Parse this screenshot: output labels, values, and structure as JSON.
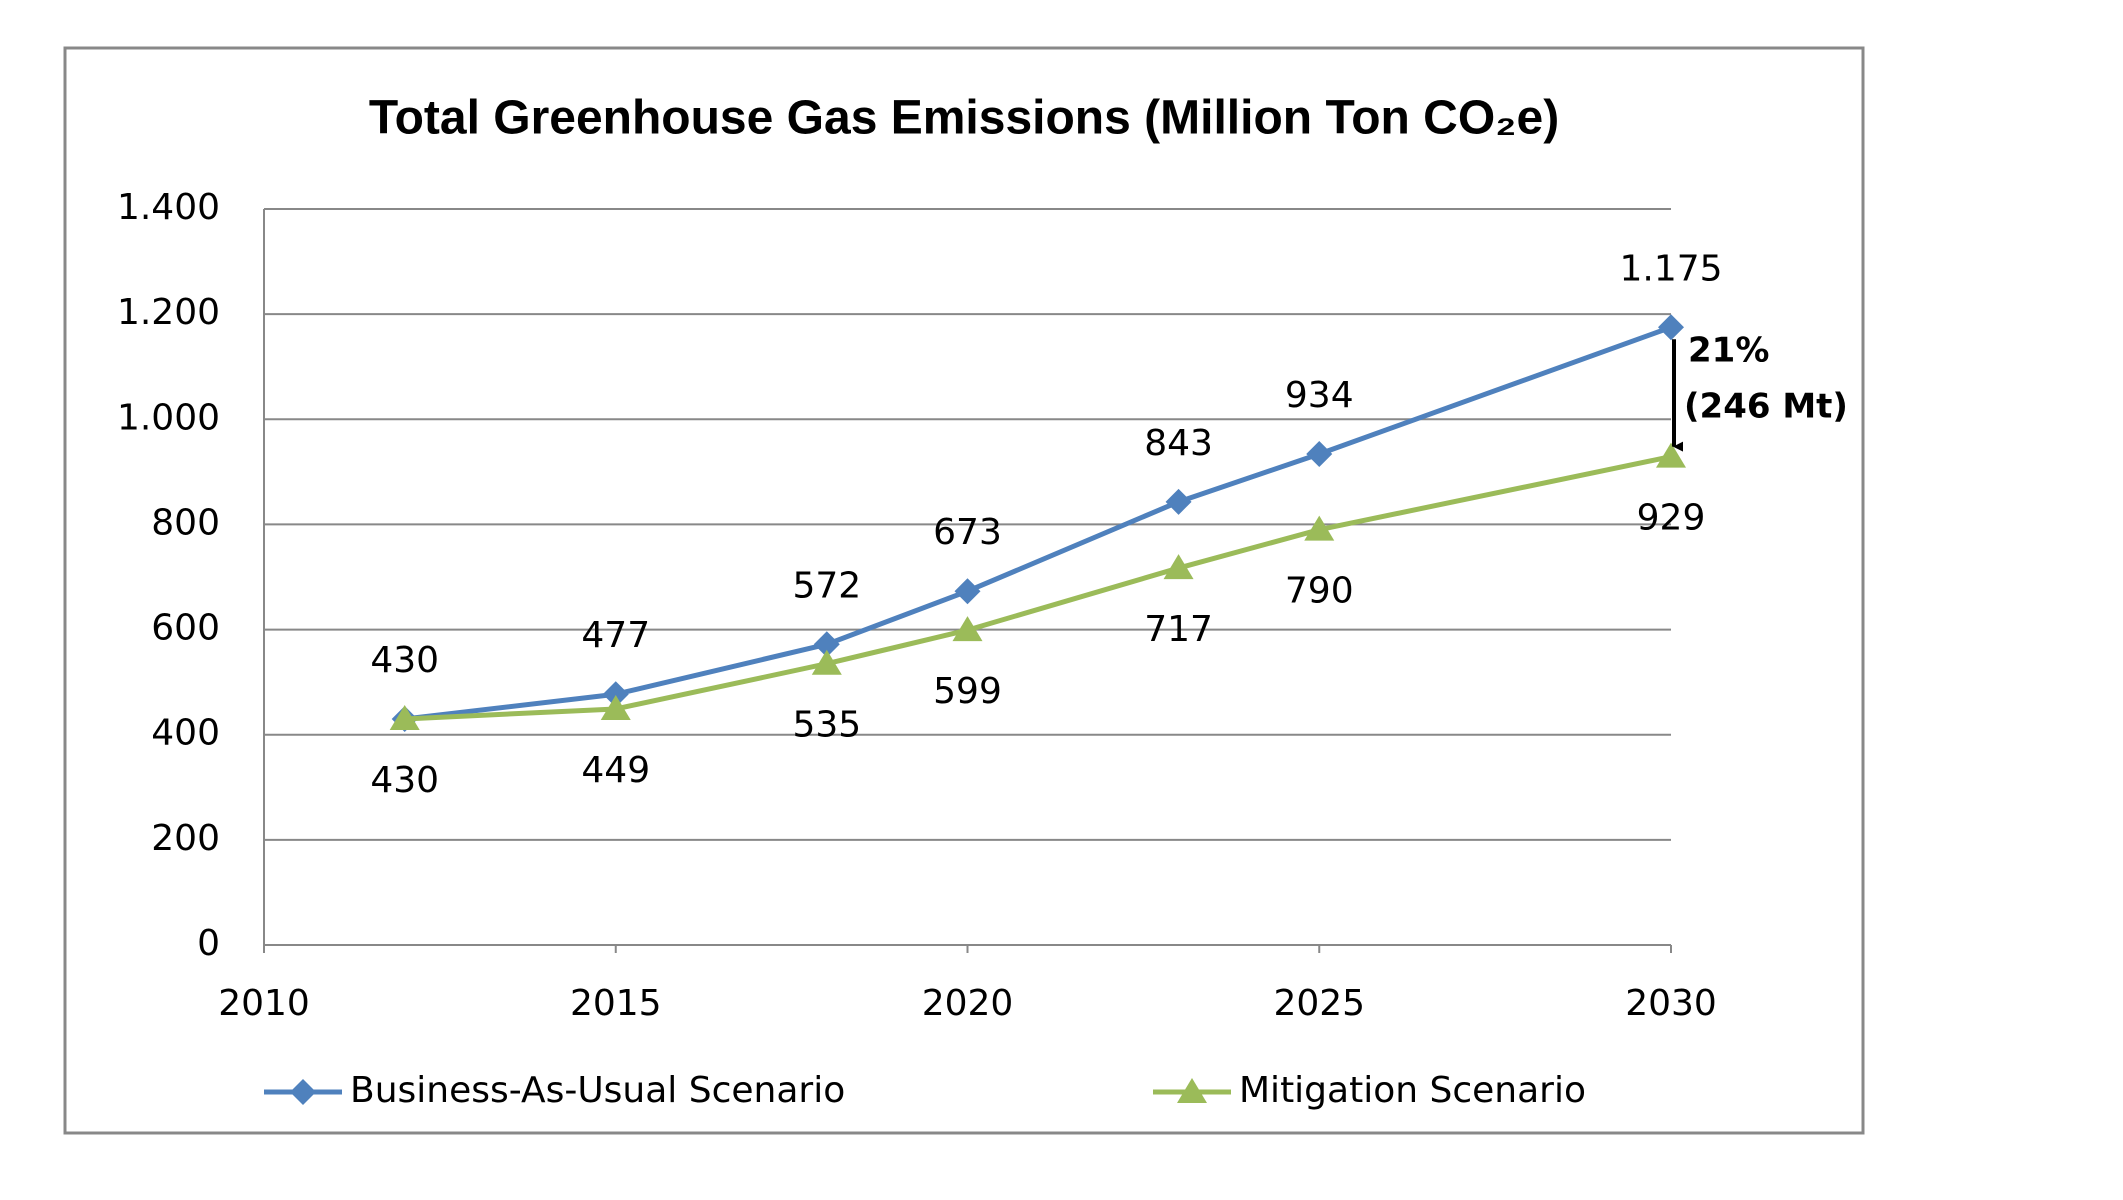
{
  "chart_data": {
    "type": "line",
    "title": "Total Greenhouse Gas Emissions (Million Ton CO₂e)",
    "x": [
      2012,
      2015,
      2018,
      2020,
      2023,
      2025,
      2030
    ],
    "series": [
      {
        "name": "Business-As-Usual Scenario",
        "color": "#4f81bd",
        "marker": "diamond",
        "values": [
          430,
          477,
          572,
          673,
          843,
          934,
          1175
        ],
        "value_labels": [
          "430",
          "477",
          "572",
          "673",
          "843",
          "934",
          "1.175"
        ]
      },
      {
        "name": "Mitigation Scenario",
        "color": "#9bbb59",
        "marker": "triangle",
        "values": [
          430,
          449,
          535,
          599,
          717,
          790,
          929
        ],
        "value_labels": [
          "430",
          "449",
          "535",
          "599",
          "717",
          "790",
          "929"
        ]
      }
    ],
    "xlim": [
      2010,
      2030
    ],
    "xticks": [
      2010,
      2015,
      2020,
      2025,
      2030
    ],
    "ylim": [
      0,
      1400
    ],
    "yticks": [
      0,
      200,
      400,
      600,
      800,
      {
        "value": 1000,
        "label": "1.000"
      },
      {
        "value": 1200,
        "label": "1.200"
      },
      {
        "value": 1400,
        "label": "1.400"
      }
    ],
    "grid": true,
    "legend": "bottom",
    "annotations": [
      "21%",
      "(246 Mt)"
    ]
  }
}
